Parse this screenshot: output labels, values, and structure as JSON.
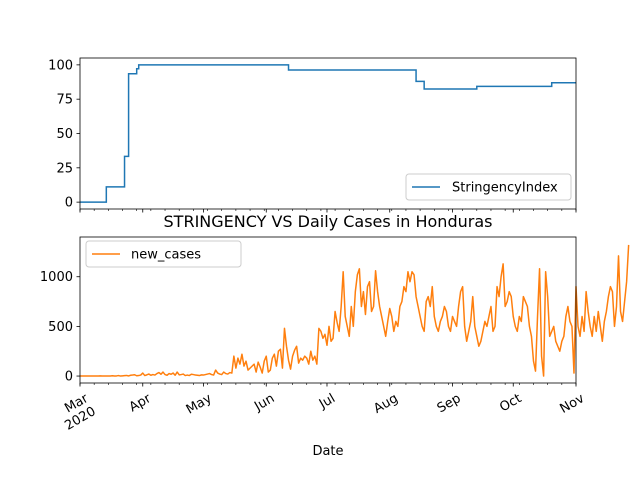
{
  "chart_data": [
    {
      "type": "line",
      "title": "",
      "xlabel": "",
      "ylabel": "",
      "ylim": [
        -5,
        105
      ],
      "yticks": [
        0,
        25,
        50,
        75,
        100
      ],
      "xlim": [
        "2020-03-01",
        "2020-11-01"
      ],
      "legend_position": "lower-right",
      "grid": false,
      "series": [
        {
          "name": "StringencyIndex",
          "color": "#1f77b4",
          "step_points": [
            [
              "2020-03-01",
              0
            ],
            [
              "2020-03-14",
              0
            ],
            [
              "2020-03-14",
              11.1
            ],
            [
              "2020-03-23",
              11.1
            ],
            [
              "2020-03-23",
              33.3
            ],
            [
              "2020-03-25",
              33.3
            ],
            [
              "2020-03-25",
              93.5
            ],
            [
              "2020-03-29",
              93.5
            ],
            [
              "2020-03-29",
              97.2
            ],
            [
              "2020-03-30",
              97.2
            ],
            [
              "2020-03-30",
              100
            ],
            [
              "2020-06-12",
              100
            ],
            [
              "2020-06-12",
              96.3
            ],
            [
              "2020-08-14",
              96.3
            ],
            [
              "2020-08-14",
              88
            ],
            [
              "2020-08-18",
              88
            ],
            [
              "2020-08-18",
              82.4
            ],
            [
              "2020-09-13",
              82.4
            ],
            [
              "2020-09-13",
              84.3
            ],
            [
              "2020-10-20",
              84.3
            ],
            [
              "2020-10-20",
              87
            ],
            [
              "2020-11-01",
              87
            ]
          ]
        }
      ]
    },
    {
      "type": "line",
      "title": "STRINGENCY VS Daily Cases in Honduras",
      "xlabel": "Date",
      "ylabel": "",
      "ylim": [
        -70,
        1400
      ],
      "yticks": [
        0,
        500,
        1000
      ],
      "xlim": [
        "2020-03-01",
        "2020-11-01"
      ],
      "x_tick_labels": [
        "Mar\n2020",
        "Apr",
        "May",
        "Jun",
        "Jul",
        "Aug",
        "Sep",
        "Oct",
        "Nov"
      ],
      "legend_position": "upper-left",
      "grid": false,
      "series": [
        {
          "name": "new_cases",
          "color": "#ff7f0e",
          "start_date": "2020-03-01",
          "values": [
            0,
            0,
            0,
            0,
            0,
            0,
            0,
            0,
            0,
            0,
            2,
            0,
            0,
            0,
            0,
            0,
            3,
            0,
            1,
            5,
            0,
            2,
            4,
            6,
            1,
            8,
            10,
            13,
            3,
            5,
            10,
            30,
            5,
            12,
            20,
            8,
            15,
            10,
            25,
            35,
            18,
            40,
            15,
            8,
            25,
            18,
            30,
            8,
            40,
            12,
            15,
            20,
            5,
            10,
            5,
            18,
            15,
            10,
            8,
            5,
            12,
            10,
            15,
            20,
            25,
            15,
            10,
            60,
            30,
            20,
            15,
            40,
            25,
            20,
            35,
            30,
            200,
            80,
            180,
            120,
            220,
            100,
            150,
            60,
            80,
            100,
            120,
            40,
            140,
            90,
            30,
            150,
            200,
            40,
            60,
            180,
            220,
            100,
            250,
            270,
            80,
            480,
            300,
            160,
            70,
            200,
            260,
            300,
            130,
            180,
            160,
            200,
            180,
            120,
            250,
            160,
            200,
            120,
            480,
            450,
            380,
            420,
            310,
            500,
            350,
            380,
            650,
            540,
            450,
            700,
            1050,
            600,
            500,
            400,
            700,
            500,
            850,
            1020,
            1080,
            700,
            850,
            620,
            900,
            950,
            650,
            700,
            1060,
            850,
            700,
            600,
            500,
            400,
            550,
            680,
            600,
            450,
            550,
            500,
            700,
            750,
            900,
            850,
            1050,
            950,
            1050,
            1020,
            800,
            700,
            600,
            500,
            450,
            750,
            800,
            700,
            900,
            600,
            500,
            450,
            550,
            600,
            700,
            650,
            500,
            450,
            600,
            550,
            500,
            700,
            850,
            900,
            500,
            350,
            450,
            550,
            800,
            500,
            400,
            300,
            350,
            450,
            550,
            500,
            600,
            700,
            450,
            500,
            900,
            800,
            1000,
            1130,
            700,
            750,
            850,
            800,
            600,
            500,
            450,
            600,
            550,
            800,
            750,
            700,
            500,
            400,
            150,
            50,
            600,
            1080,
            200,
            0,
            1050,
            800,
            400,
            450,
            500,
            350,
            300,
            250,
            350,
            400,
            600,
            700,
            550,
            500,
            30,
            900,
            500,
            400,
            600,
            450,
            850,
            650,
            500,
            400,
            600,
            450,
            650,
            500,
            350,
            550,
            650,
            800,
            900,
            850,
            500,
            700,
            1210,
            650,
            550,
            750,
            950,
            1320
          ]
        }
      ]
    }
  ]
}
